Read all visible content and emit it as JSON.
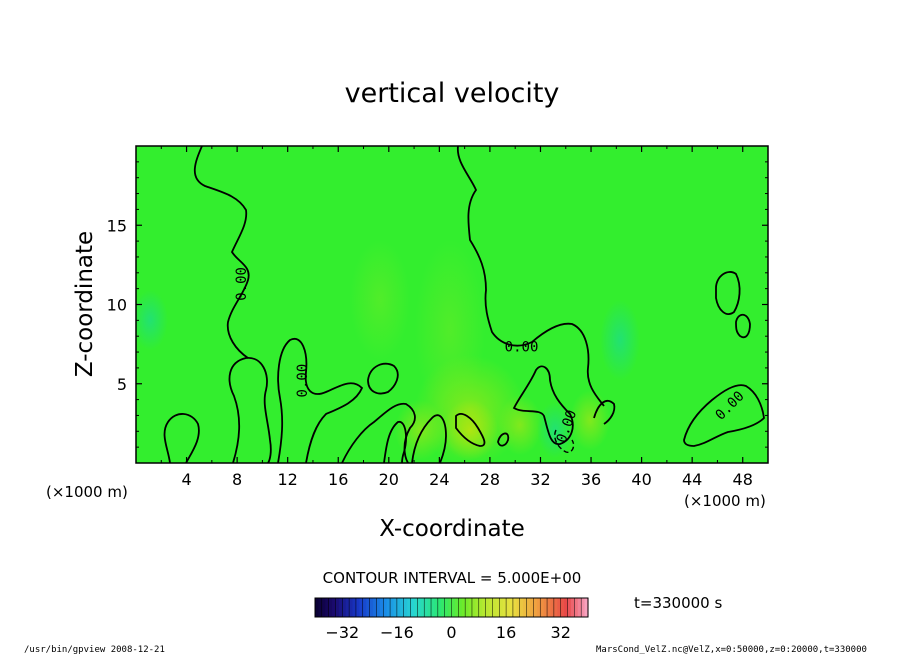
{
  "chart_data": {
    "type": "heatmap",
    "title": "vertical velocity",
    "xlabel": "X-coordinate",
    "ylabel": "Z-coordinate",
    "x_unit": "(×1000 m)",
    "x_unit_right": "(×1000 m)",
    "xlim": [
      0,
      50
    ],
    "ylim": [
      0,
      20
    ],
    "x_ticks": [
      4,
      8,
      12,
      16,
      20,
      24,
      28,
      32,
      36,
      40,
      44,
      48
    ],
    "x_tick_labels": [
      "4",
      "8",
      "12",
      "16",
      "20",
      "24",
      "28",
      "32",
      "36",
      "40",
      "44",
      "48"
    ],
    "y_ticks": [
      5,
      10,
      15
    ],
    "y_tick_labels": [
      "5",
      "10",
      "15"
    ],
    "contour_interval_text": "CONTOUR INTERVAL = 5.000E+00",
    "contour_labels": [
      {
        "text": "0.00",
        "x": 8.4,
        "y": 11.3,
        "rotate": -90
      },
      {
        "text": "0.00",
        "x": 13.2,
        "y": 5.2,
        "rotate": -90
      },
      {
        "text": "0.00",
        "x": 30.5,
        "y": 7.3,
        "rotate": 0
      },
      {
        "text": "0.00",
        "x": 34.1,
        "y": 2.3,
        "rotate": -70
      },
      {
        "text": "0.00",
        "x": 47.0,
        "y": 3.6,
        "rotate": -45
      }
    ],
    "time_label": "t=330000 s",
    "colorbar": {
      "min": -40,
      "max": 40,
      "ticks": [
        -32,
        -16,
        0,
        16,
        32
      ],
      "tick_labels": [
        "−32",
        "−16",
        "0",
        "16",
        "32"
      ]
    },
    "footer_left": "/usr/bin/gpview  2008-12-21",
    "footer_right": "MarsCond_VelZ.nc@VelZ,x=0:50000,z=0:20000,t=330000",
    "colors": {
      "background_field": "#33ee2e",
      "contour": "#000000"
    }
  }
}
